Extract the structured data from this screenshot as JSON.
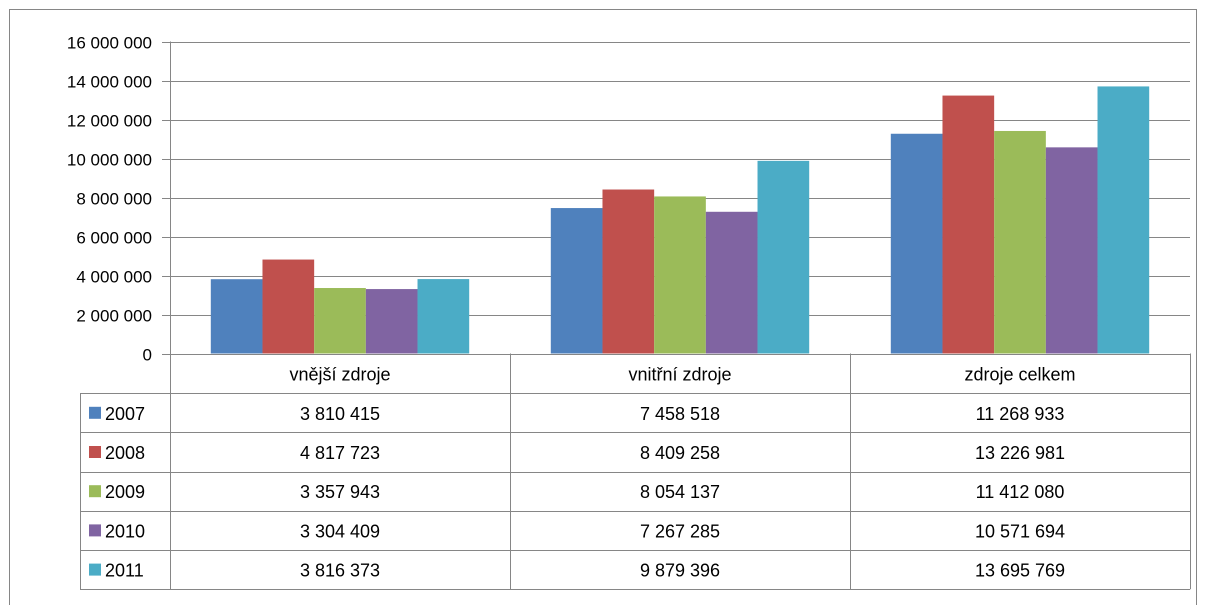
{
  "chart_data": {
    "type": "bar",
    "categories": [
      "vnější zdroje",
      "vnitřní zdroje",
      "zdroje celkem"
    ],
    "series": [
      {
        "name": "2007",
        "color": "#4F81BD",
        "values": [
          3810415,
          7458518,
          11268933
        ],
        "value_labels": [
          "3 810 415",
          "7 458 518",
          "11 268 933"
        ]
      },
      {
        "name": "2008",
        "color": "#C0504D",
        "values": [
          4817723,
          8409258,
          13226981
        ],
        "value_labels": [
          "4 817 723",
          "8 409 258",
          "13 226 981"
        ]
      },
      {
        "name": "2009",
        "color": "#9BBB59",
        "values": [
          3357943,
          8054137,
          11412080
        ],
        "value_labels": [
          "3 357 943",
          "8 054 137",
          "11 412 080"
        ]
      },
      {
        "name": "2010",
        "color": "#8064A2",
        "values": [
          3304409,
          7267285,
          10571694
        ],
        "value_labels": [
          "3 304 409",
          "7 267 285",
          "10 571 694"
        ]
      },
      {
        "name": "2011",
        "color": "#4BACC6",
        "values": [
          3816373,
          9879396,
          13695769
        ],
        "value_labels": [
          "3 816 373",
          "9 879 396",
          "13 695 769"
        ]
      }
    ],
    "ylim": [
      0,
      16000000
    ],
    "yticks": [
      0,
      2000000,
      4000000,
      6000000,
      8000000,
      10000000,
      12000000,
      14000000,
      16000000
    ],
    "ytick_labels": [
      "0",
      "2 000 000",
      "4 000 000",
      "6 000 000",
      "8 000 000",
      "10 000 000",
      "12 000 000",
      "14 000 000",
      "16 000 000"
    ],
    "grid": true,
    "legend": "data-table-below",
    "gridline_color": "#868686",
    "axis_color": "#868686"
  }
}
